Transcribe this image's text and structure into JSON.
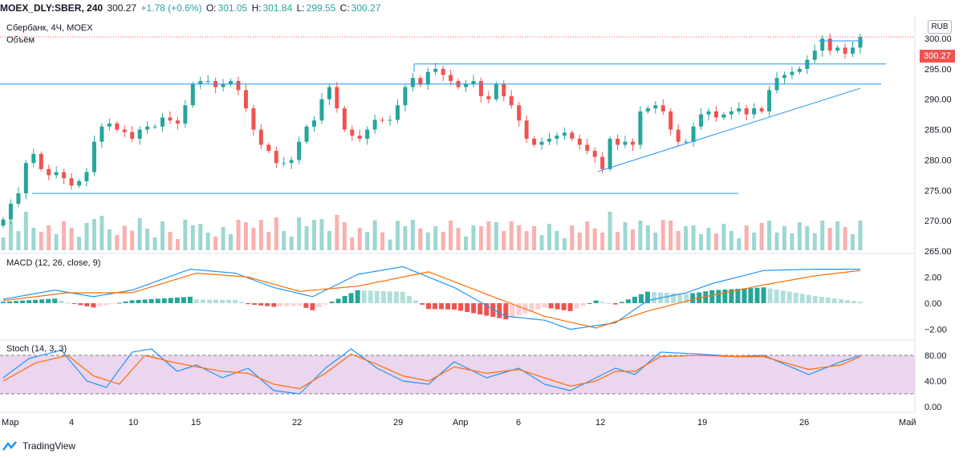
{
  "header": {
    "symbol": "MOEX_DLY:SBER, 240",
    "last": "300.27",
    "change": "+1.78 (+0.6%)",
    "o_label": "O:",
    "o": "301.05",
    "h_label": "H:",
    "h": "301.84",
    "l_label": "L:",
    "l": "299.55",
    "c_label": "C:",
    "c": "300.27"
  },
  "info": {
    "title": "Сбербанк, 4Ч, MOEX",
    "volume_label": "Объём",
    "macd_label": "MACD (12, 26, close, 9)",
    "stoch_label": "Stoch (14, 3, 3)"
  },
  "currency": "RUB",
  "price_tag": "300.27",
  "logo_text": "TradingView",
  "colors": {
    "up": "#26a69a",
    "down": "#ef5350",
    "macd": "#2196f3",
    "signal": "#ff6d00",
    "trendline": "#2196f3",
    "stoch_band": "#e1bee7"
  },
  "chart_data": [
    {
      "type": "candlestick",
      "name": "price",
      "x": [
        "Мар",
        "4",
        "10",
        "15",
        "22",
        "29",
        "Апр",
        "6",
        "12",
        "19",
        "26",
        "Май"
      ],
      "ylim": [
        263,
        305
      ],
      "yticks": [
        265.0,
        270.0,
        275.0,
        280.0,
        285.0,
        290.0,
        295.0,
        300.0
      ],
      "ytick_labels": [
        "265.00",
        "270.00",
        "275.00",
        "280.00",
        "285.00",
        "290.00",
        "295.00",
        "300.00"
      ],
      "close_path": [
        270.2,
        272.8,
        274.5,
        279.5,
        281,
        278.5,
        277.5,
        278,
        277,
        275.8,
        276.5,
        278,
        283,
        285.5,
        286,
        285,
        284.6,
        283.5,
        285,
        285.5,
        285.5,
        287,
        286.5,
        286,
        289,
        292.5,
        293,
        293,
        292,
        292.5,
        293,
        291.5,
        288.5,
        285,
        282.5,
        281.5,
        279.5,
        279.5,
        280,
        283,
        285.5,
        286.5,
        290,
        292,
        288.5,
        285,
        284,
        283.5,
        285,
        286.6,
        286.5,
        286.6,
        289,
        292,
        293.5,
        292.4,
        294.5,
        295,
        294,
        293,
        292,
        292.5,
        293,
        290.5,
        290,
        292.5,
        290.5,
        289,
        286.5,
        283.5,
        282.5,
        283,
        283.5,
        284,
        284.5,
        283.5,
        282.5,
        281.5,
        280.5,
        278.5,
        283.5,
        282.5,
        283,
        282.5,
        288,
        288.5,
        289,
        288,
        285,
        283,
        283,
        285.5,
        287.5,
        288,
        287,
        287.5,
        288,
        288.5,
        287.5,
        288.5,
        288,
        291.5,
        293.5,
        294,
        294.5,
        295,
        296.5,
        298,
        300,
        298,
        298.5,
        297.5,
        298.5,
        300.27
      ],
      "candle_count": 116,
      "volume": "bars below price, up=#26a69a down=#ef5350",
      "lines": [
        {
          "kind": "horizontal",
          "y": 292.5
        },
        {
          "kind": "horizontal",
          "y": 295.8
        },
        {
          "kind": "horizontal",
          "y": 274.5
        },
        {
          "kind": "trend",
          "from": [
            278.1
          ],
          "to": [
            291.8
          ]
        },
        {
          "kind": "last-price",
          "y": 300.27
        }
      ]
    },
    {
      "type": "line",
      "name": "MACD (12, 26, close, 9)",
      "ylim": [
        -2.9,
        3.6
      ],
      "yticks": [
        -2.0,
        0.0,
        2.0
      ],
      "ytick_labels": [
        "−2.00",
        "0.00",
        "2.00"
      ],
      "macd_key": [
        [
          0,
          0.3
        ],
        [
          8,
          1.0
        ],
        [
          14,
          0.5
        ],
        [
          20,
          1.0
        ],
        [
          29,
          2.6
        ],
        [
          36,
          2.3
        ],
        [
          42,
          1.2
        ],
        [
          48,
          0.5
        ],
        [
          55,
          2.2
        ],
        [
          62,
          2.8
        ],
        [
          70,
          1.2
        ],
        [
          78,
          -1.0
        ],
        [
          84,
          -1.3
        ],
        [
          88,
          -2.0
        ],
        [
          95,
          -1.5
        ],
        [
          100,
          0.2
        ],
        [
          106,
          0.8
        ],
        [
          110,
          1.5
        ],
        [
          118,
          2.5
        ],
        [
          126,
          2.6
        ],
        [
          133,
          2.6
        ]
      ],
      "signal_key": [
        [
          0,
          0.2
        ],
        [
          10,
          0.8
        ],
        [
          20,
          0.8
        ],
        [
          30,
          2.3
        ],
        [
          38,
          2.0
        ],
        [
          46,
          0.9
        ],
        [
          55,
          1.3
        ],
        [
          66,
          2.4
        ],
        [
          76,
          0.5
        ],
        [
          84,
          -1.0
        ],
        [
          92,
          -1.9
        ],
        [
          100,
          -0.6
        ],
        [
          108,
          0.4
        ],
        [
          118,
          1.4
        ],
        [
          126,
          2.1
        ],
        [
          133,
          2.5
        ]
      ]
    },
    {
      "type": "line",
      "name": "Stoch (14, 3, 3)",
      "ylim": [
        -10,
        100
      ],
      "yticks": [
        0.0,
        40.0,
        80.0
      ],
      "ytick_labels": [
        "0.00",
        "40.00",
        "80.00"
      ],
      "band": [
        20,
        80
      ],
      "k_key": [
        [
          0,
          45
        ],
        [
          4,
          75
        ],
        [
          9,
          88
        ],
        [
          13,
          40
        ],
        [
          16,
          30
        ],
        [
          20,
          85
        ],
        [
          23,
          90
        ],
        [
          27,
          55
        ],
        [
          30,
          65
        ],
        [
          34,
          45
        ],
        [
          38,
          60
        ],
        [
          42,
          25
        ],
        [
          46,
          20
        ],
        [
          50,
          60
        ],
        [
          54,
          90
        ],
        [
          58,
          60
        ],
        [
          62,
          40
        ],
        [
          66,
          35
        ],
        [
          70,
          70
        ],
        [
          75,
          45
        ],
        [
          80,
          60
        ],
        [
          84,
          35
        ],
        [
          88,
          25
        ],
        [
          92,
          45
        ],
        [
          95,
          60
        ],
        [
          98,
          50
        ],
        [
          102,
          85
        ],
        [
          108,
          82
        ],
        [
          114,
          78
        ],
        [
          118,
          80
        ],
        [
          125,
          50
        ],
        [
          130,
          70
        ],
        [
          133,
          80
        ]
      ],
      "d_key": [
        [
          0,
          40
        ],
        [
          5,
          68
        ],
        [
          10,
          80
        ],
        [
          14,
          48
        ],
        [
          18,
          35
        ],
        [
          22,
          80
        ],
        [
          26,
          70
        ],
        [
          30,
          62
        ],
        [
          34,
          55
        ],
        [
          38,
          52
        ],
        [
          42,
          35
        ],
        [
          46,
          28
        ],
        [
          50,
          52
        ],
        [
          54,
          82
        ],
        [
          58,
          66
        ],
        [
          62,
          48
        ],
        [
          66,
          40
        ],
        [
          70,
          62
        ],
        [
          75,
          52
        ],
        [
          80,
          58
        ],
        [
          84,
          45
        ],
        [
          88,
          32
        ],
        [
          92,
          40
        ],
        [
          95,
          55
        ],
        [
          98,
          55
        ],
        [
          102,
          78
        ],
        [
          108,
          80
        ],
        [
          114,
          78
        ],
        [
          118,
          78
        ],
        [
          125,
          58
        ],
        [
          130,
          65
        ],
        [
          133,
          78
        ]
      ]
    }
  ]
}
